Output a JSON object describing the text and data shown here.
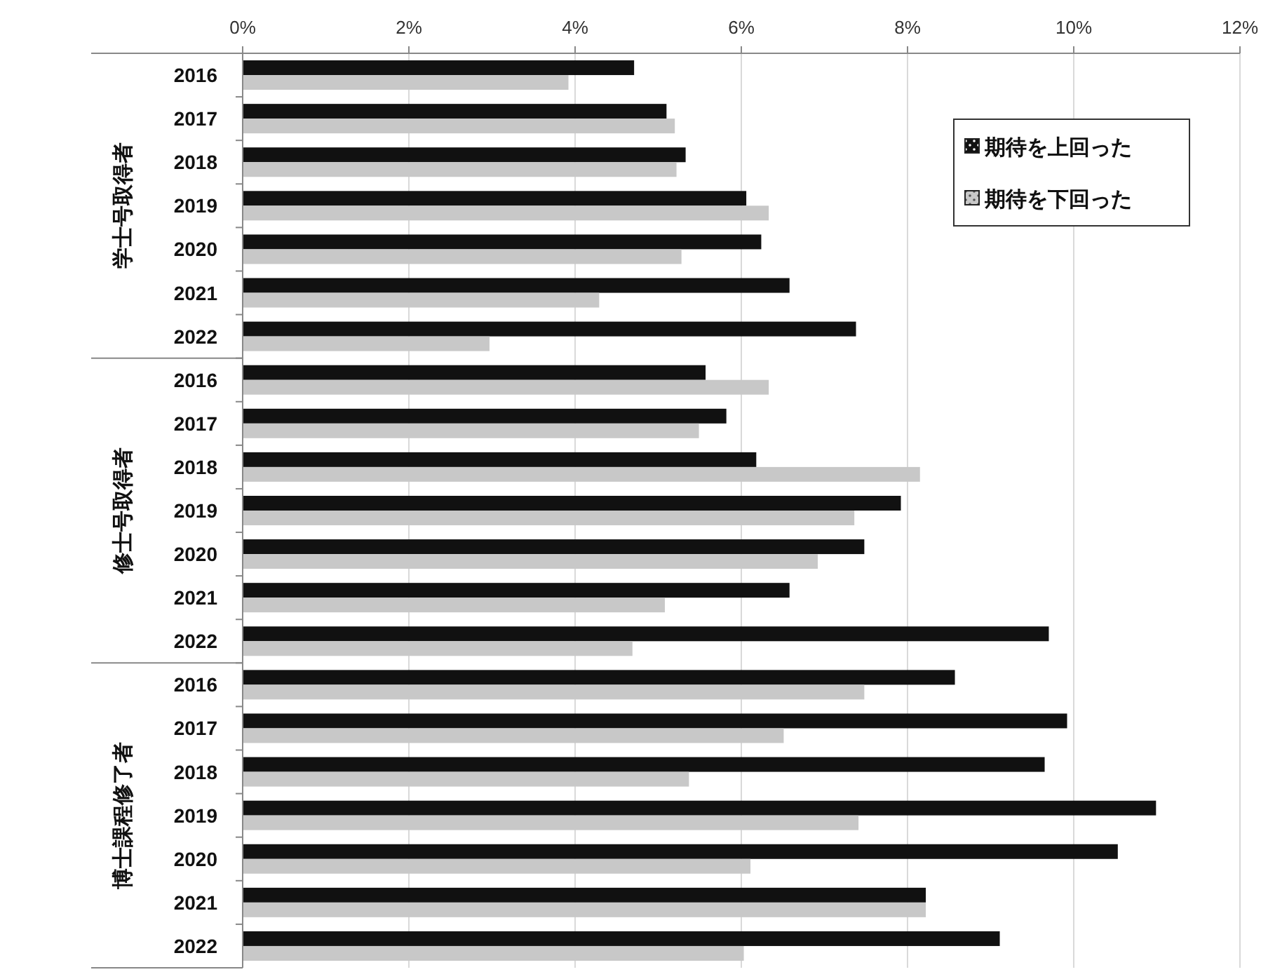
{
  "chart_data": {
    "type": "bar",
    "orientation": "horizontal",
    "categories": [
      "2016",
      "2017",
      "2018",
      "2019",
      "2020",
      "2021",
      "2022",
      "2016",
      "2017",
      "2018",
      "2019",
      "2020",
      "2021",
      "2022",
      "2016",
      "2017",
      "2018",
      "2019",
      "2020",
      "2021",
      "2022"
    ],
    "series": [
      {
        "name": "期待を上回った",
        "color": "#111111",
        "values": [
          4.71,
          5.1,
          5.33,
          6.06,
          6.24,
          6.58,
          7.38,
          5.57,
          5.82,
          6.18,
          7.92,
          7.48,
          6.58,
          9.7,
          8.57,
          9.92,
          9.65,
          10.99,
          10.53,
          8.22,
          9.11
        ]
      },
      {
        "name": "期待を下回った",
        "color": "#c8c8c8",
        "values": [
          3.92,
          5.2,
          5.22,
          6.33,
          5.28,
          4.29,
          2.97,
          6.33,
          5.49,
          8.15,
          7.36,
          6.92,
          5.08,
          4.69,
          7.48,
          6.51,
          5.37,
          7.41,
          6.11,
          8.22,
          6.03
        ]
      }
    ],
    "annotations": [
      "学士号取得者",
      "修士号取得者",
      "博士課程修了者"
    ],
    "xlim": [
      0,
      12
    ],
    "xticks": [
      {
        "value": 0,
        "label": "0%"
      },
      {
        "value": 2,
        "label": "2%"
      },
      {
        "value": 4,
        "label": "4%"
      },
      {
        "value": 6,
        "label": "6%"
      },
      {
        "value": 8,
        "label": "8%"
      },
      {
        "value": 10,
        "label": "10%"
      },
      {
        "value": 12,
        "label": "12%"
      }
    ],
    "grid": "x",
    "legend": "top right"
  }
}
